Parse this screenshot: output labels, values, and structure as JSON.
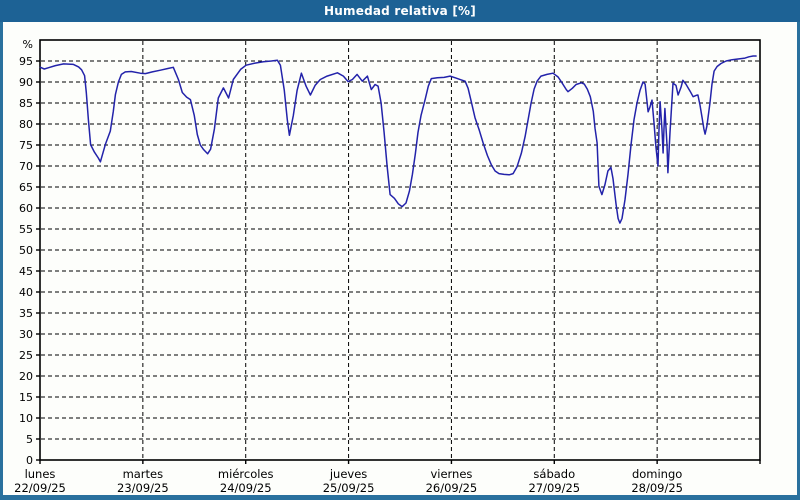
{
  "window": {
    "title": "Humedad relativa [%]"
  },
  "colors": {
    "titlebar": "#1d6295",
    "frame": "#2a719e",
    "background": "#fdfefb",
    "axis": "#000000",
    "grid": "#000000",
    "line": "#2323aa",
    "title_text": "#ffffff",
    "label_text": "#000000"
  },
  "chart_data": {
    "type": "line",
    "title": "Humedad relativa [%]",
    "ylabel": "%",
    "unit_label": "%",
    "ylim": [
      0,
      100
    ],
    "ytick_step": 5,
    "ytick_min": 0,
    "ytick_max": 95,
    "x_range_hours": [
      0,
      168
    ],
    "hours_per_day": 24,
    "grid": true,
    "grid_style": "dashed",
    "legend": "none",
    "days": [
      {
        "name": "lunes",
        "date": "22/09/25"
      },
      {
        "name": "martes",
        "date": "23/09/25"
      },
      {
        "name": "miércoles",
        "date": "24/09/25"
      },
      {
        "name": "jueves",
        "date": "25/09/25"
      },
      {
        "name": "viernes",
        "date": "26/09/25"
      },
      {
        "name": "sábado",
        "date": "27/09/25"
      },
      {
        "name": "domingo",
        "date": "28/09/25"
      }
    ],
    "series": [
      {
        "name": "Humedad relativa",
        "color": "#2323aa",
        "points": [
          [
            0.1,
            93.5
          ],
          [
            1,
            93.1
          ],
          [
            2,
            93.4
          ],
          [
            3.6,
            93.9
          ],
          [
            5.5,
            94.3
          ],
          [
            7.8,
            94.2
          ],
          [
            9,
            93.6
          ],
          [
            9.7,
            92.9
          ],
          [
            10.4,
            91.5
          ],
          [
            10.8,
            87.5
          ],
          [
            11.3,
            81
          ],
          [
            11.8,
            75.1
          ],
          [
            12.7,
            73.3
          ],
          [
            13.6,
            71.9
          ],
          [
            14.1,
            71
          ],
          [
            14.8,
            73.5
          ],
          [
            15.3,
            75.3
          ],
          [
            16.4,
            78.3
          ],
          [
            17.1,
            83
          ],
          [
            17.6,
            87
          ],
          [
            18.3,
            90
          ],
          [
            19,
            91.8
          ],
          [
            19.9,
            92.4
          ],
          [
            21.3,
            92.5
          ],
          [
            23.4,
            92.1
          ],
          [
            24.6,
            92
          ],
          [
            26.2,
            92.4
          ],
          [
            28.1,
            92.8
          ],
          [
            29.7,
            93.2
          ],
          [
            31.1,
            93.5
          ],
          [
            32.3,
            90.6
          ],
          [
            33.2,
            87.5
          ],
          [
            34.2,
            86.4
          ],
          [
            35.1,
            85.8
          ],
          [
            36,
            82
          ],
          [
            36.7,
            77.5
          ],
          [
            37.4,
            75
          ],
          [
            38.1,
            74
          ],
          [
            39.1,
            72.9
          ],
          [
            39.8,
            74
          ],
          [
            40.7,
            78.8
          ],
          [
            41.6,
            86.2
          ],
          [
            42.8,
            88.6
          ],
          [
            44,
            86.2
          ],
          [
            45.1,
            90.6
          ],
          [
            46.8,
            93
          ],
          [
            48.1,
            94
          ],
          [
            50.2,
            94.5
          ],
          [
            52.1,
            94.8
          ],
          [
            54,
            95
          ],
          [
            55.4,
            95.2
          ],
          [
            56.1,
            94
          ],
          [
            57,
            88
          ],
          [
            57.7,
            81
          ],
          [
            58.2,
            77.3
          ],
          [
            59.1,
            82
          ],
          [
            60,
            88
          ],
          [
            61,
            92.1
          ],
          [
            62.1,
            89
          ],
          [
            63.1,
            86.9
          ],
          [
            64.2,
            89.2
          ],
          [
            65.4,
            90.6
          ],
          [
            67,
            91.4
          ],
          [
            69.4,
            92.2
          ],
          [
            70.8,
            91.4
          ],
          [
            71.9,
            90.1
          ],
          [
            72.9,
            90.6
          ],
          [
            74,
            91.8
          ],
          [
            75.2,
            90.2
          ],
          [
            76.4,
            91.4
          ],
          [
            77.3,
            88.2
          ],
          [
            78.2,
            89.4
          ],
          [
            78.9,
            89
          ],
          [
            79.6,
            85
          ],
          [
            80.3,
            78
          ],
          [
            81,
            70
          ],
          [
            81.7,
            63.2
          ],
          [
            82.7,
            62.3
          ],
          [
            83.6,
            61
          ],
          [
            84.5,
            60.3
          ],
          [
            85.4,
            61.2
          ],
          [
            86.2,
            64
          ],
          [
            86.9,
            68
          ],
          [
            87.6,
            73
          ],
          [
            88.2,
            78
          ],
          [
            88.9,
            82
          ],
          [
            89.9,
            86
          ],
          [
            90.6,
            89
          ],
          [
            91.3,
            90.8
          ],
          [
            92.7,
            91
          ],
          [
            94.3,
            91.1
          ],
          [
            95.7,
            91.4
          ],
          [
            96.9,
            91
          ],
          [
            98.3,
            90.5
          ],
          [
            99.2,
            90.2
          ],
          [
            99.9,
            88.5
          ],
          [
            100.6,
            85.5
          ],
          [
            101.5,
            81.5
          ],
          [
            102.5,
            78.5
          ],
          [
            103.4,
            75.5
          ],
          [
            104.4,
            72.5
          ],
          [
            105.3,
            70.3
          ],
          [
            106.2,
            68.8
          ],
          [
            107.1,
            68.2
          ],
          [
            108.3,
            68
          ],
          [
            109.5,
            67.9
          ],
          [
            110.4,
            68.2
          ],
          [
            111.3,
            69.8
          ],
          [
            112.3,
            73
          ],
          [
            113.2,
            77
          ],
          [
            113.9,
            81
          ],
          [
            114.6,
            85
          ],
          [
            115.3,
            88.3
          ],
          [
            116,
            90.2
          ],
          [
            116.9,
            91.4
          ],
          [
            118.3,
            91.8
          ],
          [
            119.7,
            92.1
          ],
          [
            120.9,
            91.2
          ],
          [
            121.8,
            89.8
          ],
          [
            122.8,
            88.2
          ],
          [
            123.2,
            87.7
          ],
          [
            124.2,
            88.5
          ],
          [
            125.1,
            89.4
          ],
          [
            126.3,
            89.8
          ],
          [
            127,
            89.5
          ],
          [
            127.7,
            88.3
          ],
          [
            128.4,
            86.5
          ],
          [
            129.1,
            83
          ],
          [
            129.5,
            79
          ],
          [
            130,
            75.5
          ],
          [
            130.4,
            65.2
          ],
          [
            131.1,
            63.2
          ],
          [
            131.8,
            65.5
          ],
          [
            132.5,
            68.8
          ],
          [
            133.2,
            69.7
          ],
          [
            133.7,
            67
          ],
          [
            134.4,
            61
          ],
          [
            134.9,
            57.5
          ],
          [
            135.3,
            56.4
          ],
          [
            135.8,
            57.5
          ],
          [
            136.5,
            62
          ],
          [
            137.2,
            68
          ],
          [
            137.9,
            75
          ],
          [
            138.6,
            81
          ],
          [
            139.3,
            85
          ],
          [
            140,
            88
          ],
          [
            140.7,
            90
          ],
          [
            141.2,
            89.5
          ],
          [
            141.9,
            82.9
          ],
          [
            142.3,
            84
          ],
          [
            142.8,
            85.7
          ],
          [
            143.3,
            80
          ],
          [
            143.7,
            74.6
          ],
          [
            144.2,
            70
          ],
          [
            144.4,
            78
          ],
          [
            144.7,
            85.3
          ],
          [
            145.1,
            79
          ],
          [
            145.4,
            73.1
          ],
          [
            145.6,
            79
          ],
          [
            145.8,
            83.7
          ],
          [
            146.3,
            75
          ],
          [
            146.5,
            68.4
          ],
          [
            147,
            78
          ],
          [
            147.7,
            89.7
          ],
          [
            148.4,
            89.2
          ],
          [
            148.9,
            86.9
          ],
          [
            149.6,
            88.8
          ],
          [
            150,
            90.4
          ],
          [
            150.7,
            89.5
          ],
          [
            151.7,
            87.8
          ],
          [
            152.4,
            86.5
          ],
          [
            153.1,
            86.8
          ],
          [
            153.5,
            86.9
          ],
          [
            154,
            84.5
          ],
          [
            154.5,
            81.5
          ],
          [
            154.9,
            78.8
          ],
          [
            155.2,
            77.6
          ],
          [
            155.6,
            79.5
          ],
          [
            156.3,
            84.9
          ],
          [
            156.8,
            89.5
          ],
          [
            157.3,
            92.6
          ],
          [
            158,
            93.7
          ],
          [
            158.9,
            94.4
          ],
          [
            160.1,
            95
          ],
          [
            161.5,
            95.3
          ],
          [
            163.1,
            95.5
          ],
          [
            164.5,
            95.7
          ],
          [
            165.4,
            96
          ],
          [
            166.4,
            96.2
          ],
          [
            167.1,
            96.2
          ]
        ]
      }
    ]
  }
}
